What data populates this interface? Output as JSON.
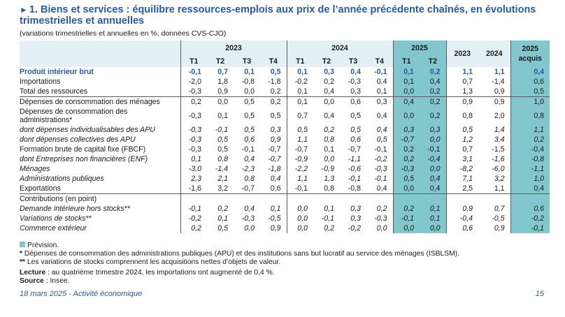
{
  "title": "1. Biens et services : équilibre ressources-emplois aux prix de l’année précédente chaînés, en évolutions trimestrielles et annuelles",
  "subtitle": "(variations trimestrielles et annuelles en %, données CVS-CJO)",
  "colors": {
    "title": "#2a5aa0",
    "header_bg": "#e3f0f5",
    "forecast": "#82c6ce"
  },
  "header": {
    "year_2023": "2023",
    "year_2024": "2024",
    "year_2025": "2025",
    "q": [
      "T1",
      "T2",
      "T3",
      "T4",
      "T1",
      "T2",
      "T3",
      "T4",
      "T1",
      "T2"
    ],
    "annual_2023": "2023",
    "annual_2024": "2024",
    "acquis_year": "2025",
    "acquis_label": "acquis"
  },
  "rows": [
    {
      "label": "Produit intérieur brut",
      "v": [
        "-0,1",
        "0,7",
        "0,1",
        "0,5",
        "0,1",
        "0,3",
        "0,4",
        "-0,1",
        "0,1",
        "0,2",
        "1,1",
        "1,1",
        "0,4"
      ]
    },
    {
      "label": "Importations",
      "v": [
        "-2,0",
        "1,8",
        "-0,8",
        "-1,8",
        "-0,2",
        "0,2",
        "-0,3",
        "0,4",
        "0,1",
        "0,4",
        "0,7",
        "-1,4",
        "0,6"
      ]
    },
    {
      "label": "Total des ressources",
      "v": [
        "-0,3",
        "0,9",
        "0,0",
        "0,2",
        "0,1",
        "0,4",
        "0,3",
        "0,1",
        "0,0",
        "0,2",
        "1,3",
        "0,9",
        "0,5"
      ]
    },
    {
      "label": "Dépenses de consommation des ménages",
      "v": [
        "0,2",
        "0,0",
        "0,5",
        "0,2",
        "0,1",
        "0,0",
        "0,6",
        "0,3",
        "0,4",
        "0,2",
        "0,9",
        "0,9",
        "1,0"
      ]
    },
    {
      "label": "Dépenses de consommation des administrations*",
      "v": [
        "-0,3",
        "0,1",
        "0,5",
        "0,5",
        "0,7",
        "0,4",
        "0,5",
        "0,4",
        "0,0",
        "0,2",
        "0,8",
        "2,0",
        "0,8"
      ]
    },
    {
      "label": "dont dépenses individualisables des APU",
      "v": [
        "-0,3",
        "-0,1",
        "0,5",
        "0,3",
        "0,5",
        "0,2",
        "0,5",
        "0,4",
        "0,3",
        "0,3",
        "0,5",
        "1,4",
        "1,1"
      ]
    },
    {
      "label": "dont dépenses collectives des APU",
      "v": [
        "-0,3",
        "0,5",
        "0,6",
        "0,9",
        "1,1",
        "0,8",
        "0,6",
        "0,5",
        "-0,7",
        "0,0",
        "1,2",
        "3,4",
        "0,2"
      ]
    },
    {
      "label": "Formation brute de capital fixe (FBCF)",
      "v": [
        "-0,3",
        "0,5",
        "-0,1",
        "-0,7",
        "-0,7",
        "0,1",
        "-0,7",
        "-0,1",
        "0,2",
        "-0,1",
        "0,7",
        "-1,5",
        "-0,4"
      ]
    },
    {
      "label": "dont Entreprises non financières (ENF)",
      "v": [
        "0,1",
        "0,8",
        "0,4",
        "-0,7",
        "-0,9",
        "0,0",
        "-1,1",
        "-0,2",
        "0,2",
        "-0,4",
        "3,1",
        "-1,6",
        "-0,8"
      ]
    },
    {
      "label": "Ménages",
      "v": [
        "-3,0",
        "-1,4",
        "-2,3",
        "-1,8",
        "-2,2",
        "-0,9",
        "-0,6",
        "-0,3",
        "-0,3",
        "0,0",
        "-8,2",
        "-6,0",
        "-1,1"
      ]
    },
    {
      "label": "Administrations publiques",
      "v": [
        "2,3",
        "2,1",
        "0,8",
        "0,4",
        "1,1",
        "1,3",
        "-0,1",
        "-0,1",
        "0,5",
        "0,4",
        "7,1",
        "3,2",
        "1,0"
      ]
    },
    {
      "label": "Exportations",
      "v": [
        "-1,6",
        "3,2",
        "-0,7",
        "0,6",
        "-0,1",
        "0,8",
        "-0,8",
        "0,4",
        "0,0",
        "0,4",
        "2,5",
        "1,1",
        "0,4"
      ]
    },
    {
      "label": "Contributions (en point)",
      "v": [
        "",
        "",
        "",
        "",
        "",
        "",
        "",
        "",
        "",
        "",
        "",
        "",
        ""
      ]
    },
    {
      "label": "Demande intérieure hors stocks**",
      "v": [
        "-0,1",
        "0,2",
        "0,4",
        "0,1",
        "0,0",
        "0,1",
        "0,3",
        "0,2",
        "0,2",
        "0,1",
        "0,9",
        "0,7",
        "0,6"
      ]
    },
    {
      "label": "Variations de stocks**",
      "v": [
        "-0,2",
        "0,1",
        "-0,3",
        "-0,5",
        "0,0",
        "-0,1",
        "0,3",
        "-0,3",
        "-0,1",
        "0,1",
        "-0,4",
        "-0,5",
        "-0,2"
      ]
    },
    {
      "label": "Commerce extérieur",
      "v": [
        "0,2",
        "0,5",
        "0,0",
        "0,9",
        "0,0",
        "0,2",
        "-0,2",
        "0,0",
        "0,0",
        "0,0",
        "0,6",
        "0,9",
        "-0,1"
      ]
    }
  ],
  "notes": {
    "legend": "Prévision.",
    "star1_mark": "*",
    "star1": "Dépenses de consommation des administrations publiques (APU) et des institutions sans but lucratif au service des ménages (ISBLSM).",
    "star2_mark": "**",
    "star2": "Les variations de stocks comprennent les acquisitions nettes d’objets de valeur.",
    "lecture_label": "Lecture",
    "lecture": " : au quatrième trimestre 2024, les importations ont augmenté de 0,4 %.",
    "source_label": "Source",
    "source": " : Insee."
  },
  "footer": {
    "left": "18 mars 2025 - Activité économique",
    "page": "15"
  }
}
